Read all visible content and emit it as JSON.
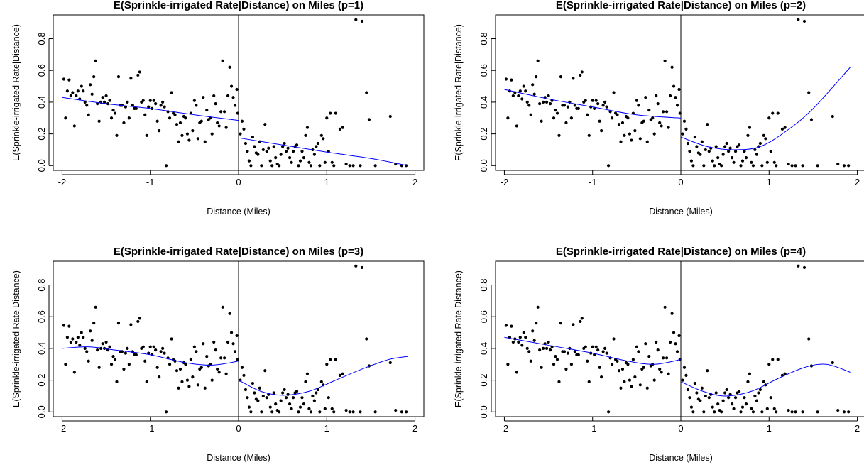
{
  "chart_data": [
    {
      "type": "scatter",
      "title": "E(Sprinkle-irrigated Rate|Distance) on Miles (p=1)",
      "xlabel": "Distance (Miles)",
      "ylabel": "E(Sprinkle-irrigated Rate|Distance)",
      "xlim": [
        -2.1,
        2.1
      ],
      "ylim": [
        -0.03,
        0.95
      ],
      "x_ticks": [
        "-2",
        "-1",
        "0",
        "1",
        "2"
      ],
      "y_ticks": [
        "0.0",
        "0.2",
        "0.4",
        "0.6",
        "0.8"
      ],
      "cutoff": 0,
      "fit_left": [
        [
          -2.0,
          0.43
        ],
        [
          -1.5,
          0.39
        ],
        [
          -1.0,
          0.36
        ],
        [
          -0.5,
          0.32
        ],
        [
          0.0,
          0.285
        ]
      ],
      "fit_right": [
        [
          0.0,
          0.175
        ],
        [
          0.5,
          0.13
        ],
        [
          1.0,
          0.085
        ],
        [
          1.5,
          0.045
        ],
        [
          1.92,
          0.0
        ]
      ],
      "fit_color": "#0000ff",
      "grid": false
    },
    {
      "type": "scatter",
      "title": "E(Sprinkle-irrigated Rate|Distance) on Miles (p=2)",
      "xlabel": "Distance (Miles)",
      "ylabel": "E(Sprinkle-irrigated Rate|Distance)",
      "xlim": [
        -2.1,
        2.1
      ],
      "ylim": [
        -0.03,
        0.95
      ],
      "x_ticks": [
        "-2",
        "-1",
        "0",
        "1",
        "2"
      ],
      "y_ticks": [
        "0.0",
        "0.2",
        "0.4",
        "0.6",
        "0.8"
      ],
      "cutoff": 0,
      "fit_left": [
        [
          -2.0,
          0.48
        ],
        [
          -1.5,
          0.42
        ],
        [
          -1.0,
          0.37
        ],
        [
          -0.5,
          0.32
        ],
        [
          0.0,
          0.3
        ]
      ],
      "fit_right": [
        [
          0.0,
          0.18
        ],
        [
          0.3,
          0.12
        ],
        [
          0.6,
          0.1
        ],
        [
          0.9,
          0.12
        ],
        [
          1.2,
          0.22
        ],
        [
          1.5,
          0.36
        ],
        [
          1.92,
          0.62
        ]
      ],
      "fit_color": "#0000ff",
      "grid": false
    },
    {
      "type": "scatter",
      "title": "E(Sprinkle-irrigated Rate|Distance) on Miles (p=3)",
      "xlabel": "Distance (Miles)",
      "ylabel": "E(Sprinkle-irrigated Rate|Distance)",
      "xlim": [
        -2.1,
        2.1
      ],
      "ylim": [
        -0.03,
        0.95
      ],
      "x_ticks": [
        "-2",
        "-1",
        "0",
        "1",
        "2"
      ],
      "y_ticks": [
        "0.0",
        "0.2",
        "0.4",
        "0.6",
        "0.8"
      ],
      "cutoff": 0,
      "fit_left": [
        [
          -2.0,
          0.4
        ],
        [
          -1.7,
          0.41
        ],
        [
          -1.4,
          0.39
        ],
        [
          -1.0,
          0.36
        ],
        [
          -0.6,
          0.31
        ],
        [
          -0.3,
          0.295
        ],
        [
          0.0,
          0.32
        ]
      ],
      "fit_right": [
        [
          0.0,
          0.2
        ],
        [
          0.25,
          0.13
        ],
        [
          0.5,
          0.105
        ],
        [
          0.8,
          0.13
        ],
        [
          1.1,
          0.2
        ],
        [
          1.4,
          0.27
        ],
        [
          1.7,
          0.33
        ],
        [
          1.92,
          0.35
        ]
      ],
      "fit_color": "#0000ff",
      "grid": false
    },
    {
      "type": "scatter",
      "title": "E(Sprinkle-irrigated Rate|Distance) on Miles (p=4)",
      "xlabel": "Distance (Miles)",
      "ylabel": "E(Sprinkle-irrigated Rate|Distance)",
      "xlim": [
        -2.1,
        2.1
      ],
      "ylim": [
        -0.03,
        0.95
      ],
      "x_ticks": [
        "-2",
        "-1",
        "0",
        "1",
        "2"
      ],
      "y_ticks": [
        "0.0",
        "0.2",
        "0.4",
        "0.6",
        "0.8"
      ],
      "cutoff": 0,
      "fit_left": [
        [
          -2.0,
          0.47
        ],
        [
          -1.5,
          0.42
        ],
        [
          -1.0,
          0.37
        ],
        [
          -0.6,
          0.32
        ],
        [
          -0.3,
          0.3
        ],
        [
          0.0,
          0.33
        ]
      ],
      "fit_right": [
        [
          0.0,
          0.19
        ],
        [
          0.25,
          0.13
        ],
        [
          0.5,
          0.1
        ],
        [
          0.8,
          0.13
        ],
        [
          1.1,
          0.21
        ],
        [
          1.4,
          0.28
        ],
        [
          1.65,
          0.3
        ],
        [
          1.92,
          0.25
        ]
      ],
      "fit_color": "#0000ff",
      "grid": false
    }
  ],
  "points": [
    [
      -1.98,
      0.545
    ],
    [
      -1.96,
      0.3
    ],
    [
      -1.94,
      0.47
    ],
    [
      -1.92,
      0.54
    ],
    [
      -1.9,
      0.44
    ],
    [
      -1.88,
      0.46
    ],
    [
      -1.86,
      0.25
    ],
    [
      -1.84,
      0.44
    ],
    [
      -1.82,
      0.47
    ],
    [
      -1.8,
      0.42
    ],
    [
      -1.78,
      0.5
    ],
    [
      -1.76,
      0.47
    ],
    [
      -1.74,
      0.4
    ],
    [
      -1.72,
      0.38
    ],
    [
      -1.7,
      0.32
    ],
    [
      -1.68,
      0.51
    ],
    [
      -1.66,
      0.45
    ],
    [
      -1.64,
      0.56
    ],
    [
      -1.62,
      0.66
    ],
    [
      -1.6,
      0.39
    ],
    [
      -1.58,
      0.28
    ],
    [
      -1.56,
      0.4
    ],
    [
      -1.54,
      0.43
    ],
    [
      -1.52,
      0.4
    ],
    [
      -1.5,
      0.44
    ],
    [
      -1.48,
      0.39
    ],
    [
      -1.46,
      0.41
    ],
    [
      -1.44,
      0.3
    ],
    [
      -1.42,
      0.35
    ],
    [
      -1.4,
      0.33
    ],
    [
      -1.38,
      0.19
    ],
    [
      -1.36,
      0.56
    ],
    [
      -1.34,
      0.38
    ],
    [
      -1.32,
      0.38
    ],
    [
      -1.3,
      0.27
    ],
    [
      -1.28,
      0.37
    ],
    [
      -1.26,
      0.4
    ],
    [
      -1.24,
      0.3
    ],
    [
      -1.22,
      0.55
    ],
    [
      -1.2,
      0.38
    ],
    [
      -1.18,
      0.36
    ],
    [
      -1.16,
      0.36
    ],
    [
      -1.14,
      0.57
    ],
    [
      -1.12,
      0.59
    ],
    [
      -1.1,
      0.4
    ],
    [
      -1.08,
      0.41
    ],
    [
      -1.06,
      0.32
    ],
    [
      -1.04,
      0.19
    ],
    [
      -1.02,
      0.37
    ],
    [
      -1.0,
      0.41
    ],
    [
      -0.98,
      0.36
    ],
    [
      -0.96,
      0.41
    ],
    [
      -0.94,
      0.39
    ],
    [
      -0.92,
      0.28
    ],
    [
      -0.9,
      0.22
    ],
    [
      -0.88,
      0.38
    ],
    [
      -0.86,
      0.4
    ],
    [
      -0.84,
      0.37
    ],
    [
      -0.82,
      0.0
    ],
    [
      -0.8,
      0.34
    ],
    [
      -0.78,
      0.3
    ],
    [
      -0.76,
      0.46
    ],
    [
      -0.74,
      0.33
    ],
    [
      -0.72,
      0.32
    ],
    [
      -0.7,
      0.26
    ],
    [
      -0.68,
      0.15
    ],
    [
      -0.66,
      0.27
    ],
    [
      -0.64,
      0.19
    ],
    [
      -0.62,
      0.31
    ],
    [
      -0.6,
      0.3
    ],
    [
      -0.58,
      0.2
    ],
    [
      -0.56,
      0.16
    ],
    [
      -0.54,
      0.33
    ],
    [
      -0.52,
      0.22
    ],
    [
      -0.5,
      0.41
    ],
    [
      -0.48,
      0.38
    ],
    [
      -0.46,
      0.17
    ],
    [
      -0.44,
      0.27
    ],
    [
      -0.42,
      0.28
    ],
    [
      -0.4,
      0.43
    ],
    [
      -0.38,
      0.15
    ],
    [
      -0.36,
      0.35
    ],
    [
      -0.34,
      0.29
    ],
    [
      -0.32,
      0.3
    ],
    [
      -0.3,
      0.2
    ],
    [
      -0.28,
      0.44
    ],
    [
      -0.26,
      0.39
    ],
    [
      -0.24,
      0.27
    ],
    [
      -0.22,
      0.25
    ],
    [
      -0.2,
      0.34
    ],
    [
      -0.18,
      0.66
    ],
    [
      -0.16,
      0.34
    ],
    [
      -0.14,
      0.24
    ],
    [
      -0.12,
      0.44
    ],
    [
      -0.1,
      0.62
    ],
    [
      -0.08,
      0.5
    ],
    [
      -0.06,
      0.43
    ],
    [
      -0.04,
      0.38
    ],
    [
      -0.02,
      0.48
    ],
    [
      -0.01,
      0.33
    ],
    [
      0.02,
      0.2
    ],
    [
      0.04,
      0.28
    ],
    [
      0.06,
      0.23
    ],
    [
      0.08,
      0.14
    ],
    [
      0.1,
      0.09
    ],
    [
      0.12,
      0.03
    ],
    [
      0.14,
      0.0
    ],
    [
      0.16,
      0.18
    ],
    [
      0.18,
      0.12
    ],
    [
      0.2,
      0.08
    ],
    [
      0.22,
      0.07
    ],
    [
      0.24,
      0.15
    ],
    [
      0.26,
      0.0
    ],
    [
      0.28,
      0.1
    ],
    [
      0.3,
      0.26
    ],
    [
      0.32,
      0.09
    ],
    [
      0.34,
      0.11
    ],
    [
      0.36,
      0.03
    ],
    [
      0.38,
      0.0
    ],
    [
      0.4,
      0.12
    ],
    [
      0.42,
      0.05
    ],
    [
      0.44,
      0.01
    ],
    [
      0.46,
      0.0
    ],
    [
      0.48,
      0.07
    ],
    [
      0.5,
      0.12
    ],
    [
      0.52,
      0.14
    ],
    [
      0.54,
      0.09
    ],
    [
      0.56,
      0.11
    ],
    [
      0.58,
      0.05
    ],
    [
      0.6,
      0.02
    ],
    [
      0.62,
      0.09
    ],
    [
      0.64,
      0.12
    ],
    [
      0.66,
      0.13
    ],
    [
      0.68,
      0.0
    ],
    [
      0.7,
      0.03
    ],
    [
      0.72,
      0.09
    ],
    [
      0.74,
      0.05
    ],
    [
      0.76,
      0.19
    ],
    [
      0.78,
      0.24
    ],
    [
      0.8,
      0.02
    ],
    [
      0.82,
      0.0
    ],
    [
      0.84,
      0.1
    ],
    [
      0.86,
      0.07
    ],
    [
      0.88,
      0.12
    ],
    [
      0.9,
      0.14
    ],
    [
      0.92,
      0.0
    ],
    [
      0.94,
      0.19
    ],
    [
      0.96,
      0.17
    ],
    [
      0.98,
      0.02
    ],
    [
      1.0,
      0.3
    ],
    [
      1.02,
      0.09
    ],
    [
      1.04,
      0.33
    ],
    [
      1.06,
      0.02
    ],
    [
      1.08,
      0.0
    ],
    [
      1.1,
      0.33
    ],
    [
      1.15,
      0.23
    ],
    [
      1.18,
      0.24
    ],
    [
      1.22,
      0.01
    ],
    [
      1.26,
      0.0
    ],
    [
      1.3,
      0.0
    ],
    [
      1.33,
      0.92
    ],
    [
      1.38,
      0.0
    ],
    [
      1.4,
      0.91
    ],
    [
      1.45,
      0.46
    ],
    [
      1.48,
      0.29
    ],
    [
      1.55,
      0.0
    ],
    [
      1.72,
      0.31
    ],
    [
      1.78,
      0.01
    ],
    [
      1.85,
      0.0
    ],
    [
      1.9,
      0.0
    ]
  ]
}
